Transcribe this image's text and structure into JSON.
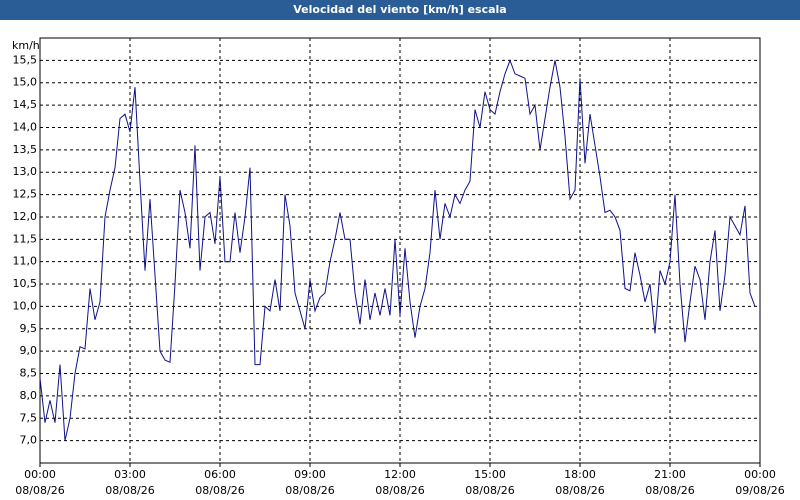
{
  "chart_data": {
    "type": "line",
    "title": "Velocidad del viento [km/h] escala",
    "y_label": "km/h",
    "color": "#10108c",
    "grid": true,
    "xlim": [
      0,
      1440
    ],
    "ylim": [
      6.5,
      16
    ],
    "xticks": [
      {
        "value": 0,
        "label": "00:00",
        "date": "08/08/26"
      },
      {
        "value": 180,
        "label": "03:00",
        "date": "08/08/26"
      },
      {
        "value": 360,
        "label": "06:00",
        "date": "08/08/26"
      },
      {
        "value": 540,
        "label": "09:00",
        "date": "08/08/26"
      },
      {
        "value": 720,
        "label": "12:00",
        "date": "08/08/26"
      },
      {
        "value": 900,
        "label": "15:00",
        "date": "08/08/26"
      },
      {
        "value": 1080,
        "label": "18:00",
        "date": "08/08/26"
      },
      {
        "value": 1260,
        "label": "21:00",
        "date": "08/08/26"
      },
      {
        "value": 1440,
        "label": "00:00",
        "date": "09/08/26"
      }
    ],
    "yticks": [
      {
        "value": 7,
        "label": "7,0"
      },
      {
        "value": 7.5,
        "label": "7,5"
      },
      {
        "value": 8,
        "label": "8,0"
      },
      {
        "value": 8.5,
        "label": "8,5"
      },
      {
        "value": 9,
        "label": "9,0"
      },
      {
        "value": 9.5,
        "label": "9,5"
      },
      {
        "value": 10,
        "label": "10,0"
      },
      {
        "value": 10.5,
        "label": "10,5"
      },
      {
        "value": 11,
        "label": "11,0"
      },
      {
        "value": 11.5,
        "label": "11,5"
      },
      {
        "value": 12,
        "label": "12,0"
      },
      {
        "value": 12.5,
        "label": "12,5"
      },
      {
        "value": 13,
        "label": "13,0"
      },
      {
        "value": 13.5,
        "label": "13,5"
      },
      {
        "value": 14,
        "label": "14,0"
      },
      {
        "value": 14.5,
        "label": "14,5"
      },
      {
        "value": 15,
        "label": "15,0"
      },
      {
        "value": 15.5,
        "label": "15,5"
      }
    ],
    "x": [
      0,
      10,
      20,
      30,
      40,
      50,
      60,
      70,
      80,
      90,
      100,
      110,
      120,
      130,
      140,
      150,
      160,
      170,
      180,
      190,
      200,
      210,
      220,
      230,
      240,
      250,
      260,
      270,
      280,
      290,
      300,
      310,
      320,
      330,
      340,
      350,
      360,
      370,
      380,
      390,
      400,
      410,
      420,
      430,
      440,
      450,
      460,
      470,
      480,
      490,
      500,
      510,
      520,
      530,
      540,
      550,
      560,
      570,
      580,
      590,
      600,
      610,
      620,
      630,
      640,
      650,
      660,
      670,
      680,
      690,
      700,
      710,
      720,
      730,
      740,
      750,
      760,
      770,
      780,
      790,
      800,
      810,
      820,
      830,
      840,
      850,
      860,
      870,
      880,
      890,
      900,
      910,
      920,
      930,
      940,
      950,
      960,
      970,
      980,
      990,
      1000,
      1010,
      1020,
      1030,
      1040,
      1050,
      1060,
      1070,
      1080,
      1090,
      1100,
      1110,
      1120,
      1130,
      1140,
      1150,
      1160,
      1170,
      1180,
      1190,
      1200,
      1210,
      1220,
      1230,
      1240,
      1250,
      1260,
      1270,
      1280,
      1290,
      1300,
      1310,
      1320,
      1330,
      1340,
      1350,
      1360,
      1370,
      1380,
      1390,
      1400,
      1410,
      1420,
      1430
    ],
    "values": [
      8.4,
      7.4,
      7.9,
      7.4,
      8.7,
      7.0,
      7.5,
      8.5,
      9.1,
      9.05,
      10.4,
      9.7,
      10.1,
      12.0,
      12.6,
      13.1,
      14.2,
      14.3,
      13.9,
      14.9,
      12.8,
      10.8,
      12.4,
      10.7,
      9.0,
      8.8,
      8.75,
      10.5,
      12.6,
      12.1,
      11.3,
      13.6,
      10.8,
      12.0,
      12.1,
      11.4,
      12.9,
      11.0,
      11.0,
      12.1,
      11.2,
      12.0,
      13.1,
      8.7,
      8.7,
      10.0,
      9.9,
      10.6,
      9.9,
      12.5,
      11.8,
      10.3,
      9.9,
      9.5,
      10.6,
      9.9,
      10.2,
      10.3,
      11.0,
      11.5,
      12.1,
      11.5,
      11.5,
      10.3,
      9.6,
      10.6,
      9.7,
      10.3,
      9.8,
      10.4,
      9.8,
      11.5,
      9.8,
      11.3,
      10.1,
      9.3,
      10.0,
      10.4,
      11.2,
      12.6,
      11.5,
      12.3,
      12.0,
      12.5,
      12.3,
      12.6,
      12.8,
      14.4,
      14.0,
      14.8,
      14.4,
      14.3,
      14.8,
      15.2,
      15.5,
      15.2,
      15.15,
      15.1,
      14.3,
      14.5,
      13.5,
      14.2,
      14.9,
      15.5,
      14.9,
      13.8,
      12.4,
      12.6,
      15.1,
      13.2,
      14.3,
      13.6,
      12.9,
      12.1,
      12.15,
      12.0,
      11.7,
      10.4,
      10.35,
      11.2,
      10.7,
      10.1,
      10.5,
      9.4,
      10.8,
      10.5,
      11.0,
      12.5,
      10.5,
      9.2,
      10.1,
      10.9,
      10.6,
      9.7,
      11.0,
      11.7,
      9.9,
      10.7,
      12.0,
      11.8,
      11.6,
      12.25,
      10.3,
      10.0
    ]
  }
}
